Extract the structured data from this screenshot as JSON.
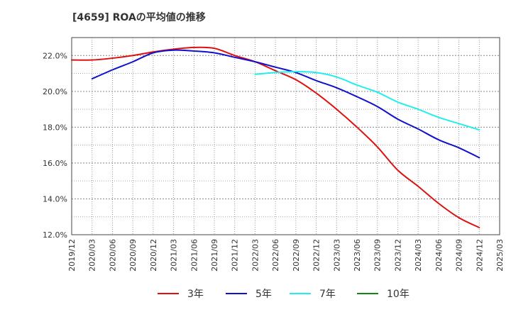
{
  "chart_data": {
    "type": "line",
    "title": "[4659]  ROAの平均値の推移",
    "xlabel": "",
    "ylabel": "",
    "x_ticks": [
      "2019/12",
      "2020/03",
      "2020/06",
      "2020/09",
      "2020/12",
      "2021/03",
      "2021/06",
      "2021/09",
      "2021/12",
      "2022/03",
      "2022/06",
      "2022/09",
      "2022/12",
      "2023/03",
      "2023/06",
      "2023/09",
      "2023/12",
      "2024/03",
      "2024/06",
      "2024/09",
      "2024/12",
      "2025/03"
    ],
    "y_ticks": [
      "12.0%",
      "14.0%",
      "16.0%",
      "18.0%",
      "20.0%",
      "22.0%"
    ],
    "ylim": [
      12.0,
      23.0
    ],
    "grid": true,
    "legend_position": "bottom",
    "series": [
      {
        "name": "3年",
        "color": "#dd1111",
        "x": [
          "2019/12",
          "2020/03",
          "2020/06",
          "2020/09",
          "2020/12",
          "2021/03",
          "2021/06",
          "2021/09",
          "2021/12",
          "2022/03",
          "2022/06",
          "2022/09",
          "2022/12",
          "2023/03",
          "2023/06",
          "2023/09",
          "2023/12",
          "2024/03",
          "2024/06",
          "2024/09",
          "2024/12"
        ],
        "values": [
          21.75,
          21.75,
          21.85,
          22.0,
          22.2,
          22.35,
          22.45,
          22.4,
          22.0,
          21.65,
          21.15,
          20.65,
          19.9,
          19.0,
          18.0,
          16.9,
          15.6,
          14.7,
          13.75,
          12.95,
          12.4
        ]
      },
      {
        "name": "5年",
        "color": "#1111cc",
        "x": [
          "2020/03",
          "2020/06",
          "2020/09",
          "2020/12",
          "2021/03",
          "2021/06",
          "2021/09",
          "2021/12",
          "2022/03",
          "2022/06",
          "2022/09",
          "2022/12",
          "2023/03",
          "2023/06",
          "2023/09",
          "2023/12",
          "2024/03",
          "2024/06",
          "2024/09",
          "2024/12"
        ],
        "values": [
          20.7,
          21.2,
          21.65,
          22.15,
          22.3,
          22.25,
          22.15,
          21.9,
          21.65,
          21.35,
          21.05,
          20.6,
          20.2,
          19.7,
          19.15,
          18.45,
          17.9,
          17.3,
          16.85,
          16.3
        ]
      },
      {
        "name": "7年",
        "color": "#22eeee",
        "x": [
          "2022/03",
          "2022/06",
          "2022/09",
          "2022/12",
          "2023/03",
          "2023/06",
          "2023/09",
          "2023/12",
          "2024/03",
          "2024/06",
          "2024/09",
          "2024/12"
        ],
        "values": [
          20.95,
          21.05,
          21.1,
          21.05,
          20.8,
          20.35,
          19.95,
          19.4,
          19.0,
          18.55,
          18.2,
          17.85
        ]
      },
      {
        "name": "10年",
        "color": "#118811",
        "x": [],
        "values": []
      }
    ]
  }
}
